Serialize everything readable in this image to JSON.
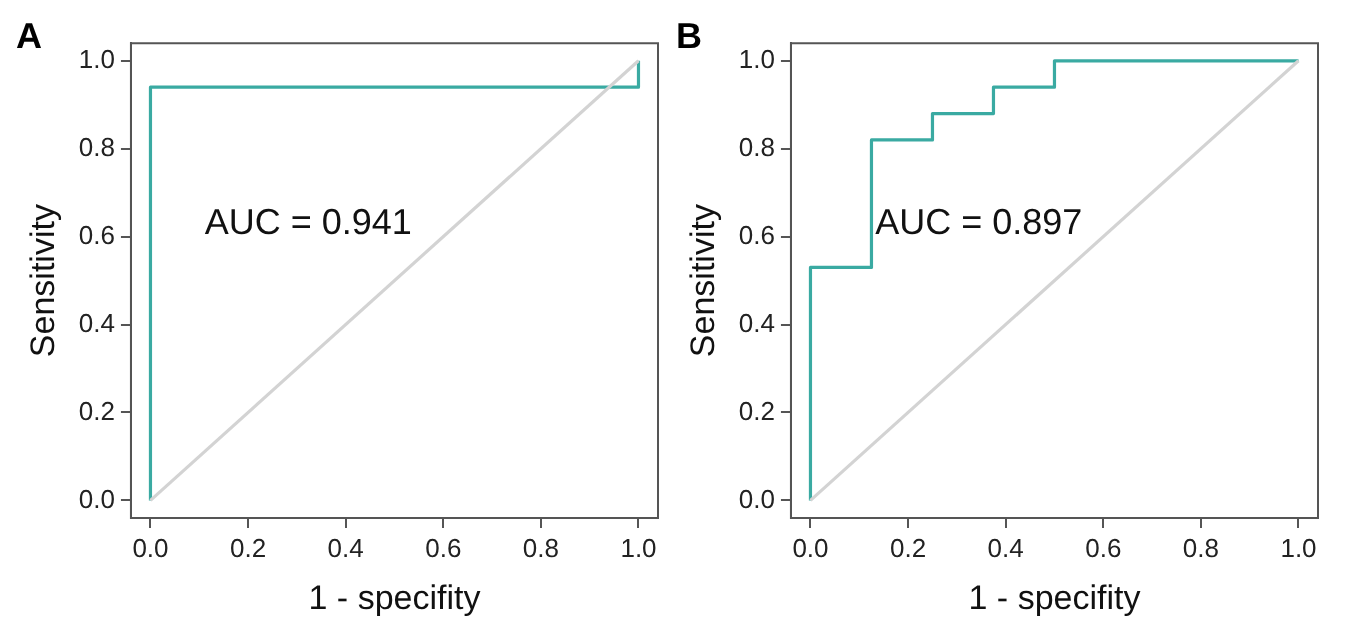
{
  "chart_data": [
    {
      "type": "line",
      "title": "A",
      "xlabel": "1 - specifity",
      "ylabel": "Sensitivity",
      "annotations": [
        "AUC = 0.941"
      ],
      "marker": "none",
      "grid": false,
      "xlim": [
        -0.04,
        1.04
      ],
      "ylim": [
        -0.04,
        1.04
      ],
      "xticks": [
        {
          "value": 0,
          "label": "0.0"
        },
        {
          "value": 0.2,
          "label": "0.2"
        },
        {
          "value": 0.4,
          "label": "0.4"
        },
        {
          "value": 0.6,
          "label": "0.6"
        },
        {
          "value": 0.8,
          "label": "0.8"
        },
        {
          "value": 1,
          "label": "1.0"
        }
      ],
      "yticks": [
        {
          "value": 0,
          "label": "0.0"
        },
        {
          "value": 0.2,
          "label": "0.2"
        },
        {
          "value": 0.4,
          "label": "0.4"
        },
        {
          "value": 0.6,
          "label": "0.6"
        },
        {
          "value": 0.8,
          "label": "0.8"
        },
        {
          "value": 1,
          "label": "1.0"
        }
      ],
      "series": [
        {
          "color": "#d3d3d3",
          "x": [
            0,
            1
          ],
          "values": [
            0,
            1
          ]
        },
        {
          "color": "#3aaaa2",
          "x": [
            0,
            0,
            1,
            1
          ],
          "values": [
            0,
            0.94,
            0.94,
            1
          ]
        }
      ]
    },
    {
      "type": "line",
      "title": "B",
      "xlabel": "1 - specifity",
      "ylabel": "Sensitivity",
      "annotations": [
        "AUC = 0.897"
      ],
      "marker": "none",
      "grid": false,
      "xlim": [
        -0.04,
        1.04
      ],
      "ylim": [
        -0.04,
        1.04
      ],
      "xticks": [
        {
          "value": 0,
          "label": "0.0"
        },
        {
          "value": 0.2,
          "label": "0.2"
        },
        {
          "value": 0.4,
          "label": "0.4"
        },
        {
          "value": 0.6,
          "label": "0.6"
        },
        {
          "value": 0.8,
          "label": "0.8"
        },
        {
          "value": 1,
          "label": "1.0"
        }
      ],
      "yticks": [
        {
          "value": 0,
          "label": "0.0"
        },
        {
          "value": 0.2,
          "label": "0.2"
        },
        {
          "value": 0.4,
          "label": "0.4"
        },
        {
          "value": 0.6,
          "label": "0.6"
        },
        {
          "value": 0.8,
          "label": "0.8"
        },
        {
          "value": 1,
          "label": "1.0"
        }
      ],
      "series": [
        {
          "color": "#d3d3d3",
          "x": [
            0,
            1
          ],
          "values": [
            0,
            1
          ]
        },
        {
          "color": "#3aaaa2",
          "x": [
            0,
            0,
            0.125,
            0.125,
            0.25,
            0.25,
            0.375,
            0.375,
            0.5,
            0.5,
            1
          ],
          "values": [
            0,
            0.53,
            0.53,
            0.82,
            0.82,
            0.88,
            0.88,
            0.94,
            0.94,
            1,
            1
          ]
        }
      ]
    }
  ]
}
